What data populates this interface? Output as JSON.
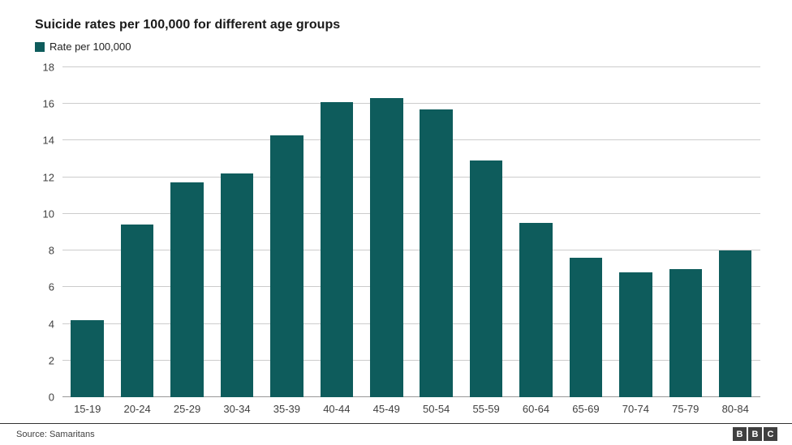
{
  "header": {
    "title": "Suicide rates per 100,000 for different age groups"
  },
  "legend": {
    "label": "Rate per 100,000",
    "swatch_color": "#0e5c5c"
  },
  "chart_data": {
    "type": "bar",
    "title": "Suicide rates per 100,000 for different age groups",
    "categories": [
      "15-19",
      "20-24",
      "25-29",
      "30-34",
      "35-39",
      "40-44",
      "45-49",
      "50-54",
      "55-59",
      "60-64",
      "65-69",
      "70-74",
      "75-79",
      "80-84"
    ],
    "values": [
      4.2,
      9.4,
      11.7,
      12.2,
      14.3,
      16.1,
      16.3,
      15.7,
      12.9,
      9.5,
      7.6,
      6.8,
      7.0,
      8.0
    ],
    "series_name": "Rate per 100,000",
    "xlabel": "",
    "ylabel": "",
    "ylim": [
      0,
      18
    ],
    "yticks": [
      0,
      2,
      4,
      6,
      8,
      10,
      12,
      14,
      16,
      18
    ],
    "bar_color": "#0e5c5c",
    "grid": true,
    "legend_position": "top-left"
  },
  "footer": {
    "source": "Source: Samaritans",
    "logo_letters": [
      "B",
      "B",
      "C"
    ]
  }
}
